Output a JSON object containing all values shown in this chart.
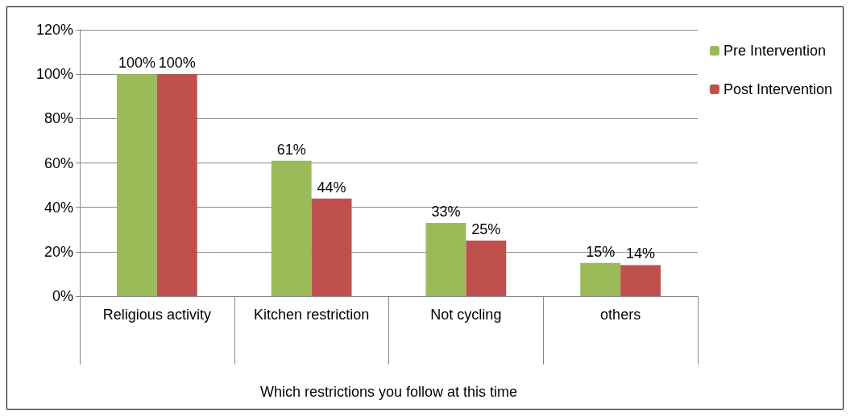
{
  "chart_data": {
    "type": "bar",
    "xlabel": "Which restrictions you follow at this time",
    "categories": [
      "Religious activity",
      "Kitchen restriction",
      "Not cycling",
      "others"
    ],
    "series": [
      {
        "name": "Pre Intervention",
        "color": "#9bbb59",
        "values": [
          100,
          61,
          33,
          15
        ],
        "value_labels": [
          "100%",
          "61%",
          "33%",
          "15%"
        ]
      },
      {
        "name": "Post Intervention",
        "color": "#c0504d",
        "values": [
          100,
          44,
          25,
          14
        ],
        "value_labels": [
          "100%",
          "44%",
          "25%",
          "14%"
        ]
      }
    ],
    "ylim": [
      0,
      120
    ],
    "yticks": [
      {
        "value": 0,
        "label": "0%"
      },
      {
        "value": 20,
        "label": "20%"
      },
      {
        "value": 40,
        "label": "40%"
      },
      {
        "value": 60,
        "label": "60%"
      },
      {
        "value": 80,
        "label": "80%"
      },
      {
        "value": 100,
        "label": "100%"
      },
      {
        "value": 120,
        "label": "120%"
      }
    ],
    "grid": "y",
    "legend": "right"
  }
}
